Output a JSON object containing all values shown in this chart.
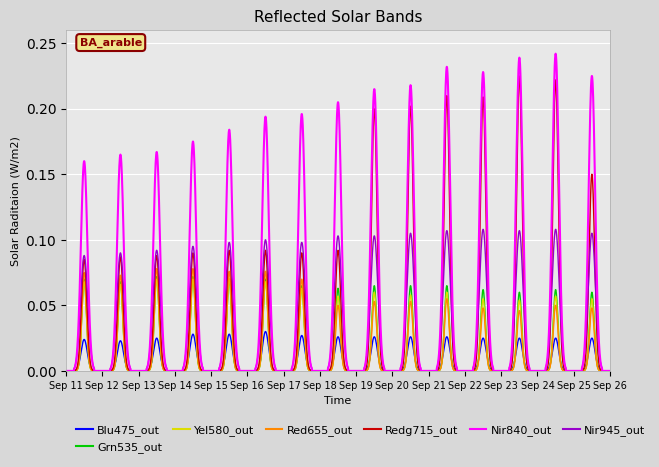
{
  "title": "Reflected Solar Bands",
  "xlabel": "Time",
  "ylabel": "Solar Raditaion (W/m2)",
  "ylim": [
    0.0,
    0.26
  ],
  "legend_label": "BA_arable",
  "legend_bg": "#f0e68c",
  "legend_border": "#8b0000",
  "fig_bg": "#d8d8d8",
  "axes_bg": "#e8e8e8",
  "grid_color": "#ffffff",
  "series_order": [
    "Blu475_out",
    "Grn535_out",
    "Yel580_out",
    "Red655_out",
    "Redg715_out",
    "Nir840_out",
    "Nir945_out"
  ],
  "series": {
    "Blu475_out": {
      "color": "#0000ff",
      "lw": 1.0
    },
    "Grn535_out": {
      "color": "#00cc00",
      "lw": 1.0
    },
    "Yel580_out": {
      "color": "#dddd00",
      "lw": 1.0
    },
    "Red655_out": {
      "color": "#ff8800",
      "lw": 1.0
    },
    "Redg715_out": {
      "color": "#cc0000",
      "lw": 1.0
    },
    "Nir840_out": {
      "color": "#ff00ff",
      "lw": 1.5
    },
    "Nir945_out": {
      "color": "#9900cc",
      "lw": 1.0
    }
  },
  "num_days": 15,
  "nir840_peaks": [
    0.16,
    0.165,
    0.167,
    0.175,
    0.184,
    0.194,
    0.196,
    0.205,
    0.215,
    0.218,
    0.232,
    0.228,
    0.239,
    0.242,
    0.225
  ],
  "redg_peaks": [
    0.085,
    0.087,
    0.088,
    0.09,
    0.092,
    0.092,
    0.09,
    0.092,
    0.2,
    0.202,
    0.21,
    0.209,
    0.225,
    0.222,
    0.15
  ],
  "nir945_peaks": [
    0.088,
    0.09,
    0.092,
    0.095,
    0.098,
    0.1,
    0.098,
    0.103,
    0.103,
    0.105,
    0.107,
    0.108,
    0.107,
    0.108,
    0.105
  ],
  "grn_peaks": [
    0.07,
    0.068,
    0.072,
    0.072,
    0.07,
    0.07,
    0.065,
    0.063,
    0.065,
    0.065,
    0.065,
    0.062,
    0.06,
    0.062,
    0.06
  ],
  "yel_peaks": [
    0.068,
    0.066,
    0.07,
    0.07,
    0.07,
    0.068,
    0.063,
    0.057,
    0.06,
    0.058,
    0.06,
    0.055,
    0.054,
    0.057,
    0.055
  ],
  "red_peaks": [
    0.075,
    0.073,
    0.078,
    0.078,
    0.076,
    0.076,
    0.07,
    0.05,
    0.053,
    0.053,
    0.055,
    0.048,
    0.046,
    0.05,
    0.048
  ],
  "blue_peaks": [
    0.024,
    0.023,
    0.025,
    0.028,
    0.028,
    0.03,
    0.027,
    0.026,
    0.026,
    0.026,
    0.026,
    0.025,
    0.025,
    0.025,
    0.025
  ],
  "xtick_labels": [
    "Sep 11",
    "Sep 12",
    "Sep 13",
    "Sep 14",
    "Sep 15",
    "Sep 16",
    "Sep 17",
    "Sep 18",
    "Sep 19",
    "Sep 20",
    "Sep 21",
    "Sep 22",
    "Sep 23",
    "Sep 24",
    "Sep 25",
    "Sep 26"
  ]
}
